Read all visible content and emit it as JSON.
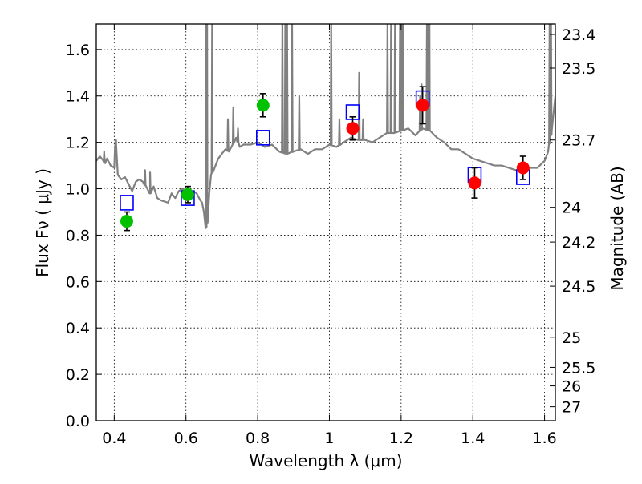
{
  "chart_data": {
    "type": "scatter",
    "xlabel": "Wavelength  λ (μm)",
    "ylabel": "Flux  Fν  ( μJy )",
    "ylabel_right": "Magnitude (AB)",
    "xlim": [
      0.35,
      1.63
    ],
    "ylim": [
      0.0,
      1.71
    ],
    "grid": true,
    "x_ticks": [
      0.4,
      0.6,
      0.8,
      1.0,
      1.2,
      1.4,
      1.6
    ],
    "x_tick_labels": [
      "0.4",
      "0.6",
      "0.8",
      "1",
      "1.2",
      "1.4",
      "1.6"
    ],
    "y_ticks": [
      0.0,
      0.2,
      0.4,
      0.6,
      0.8,
      1.0,
      1.2,
      1.4,
      1.6
    ],
    "y_tick_labels": [
      "0.0",
      "0.2",
      "0.4",
      "0.6",
      "0.8",
      "1.0",
      "1.2",
      "1.4",
      "1.6"
    ],
    "right_ticks": [
      {
        "flux": 1.665,
        "label": "23.4"
      },
      {
        "flux": 1.52,
        "label": "23.5"
      },
      {
        "flux": 1.21,
        "label": "23.7"
      },
      {
        "flux": 0.92,
        "label": "24"
      },
      {
        "flux": 0.77,
        "label": "24.2"
      },
      {
        "flux": 0.58,
        "label": "24.5"
      },
      {
        "flux": 0.36,
        "label": "25"
      },
      {
        "flux": 0.23,
        "label": "25.5"
      },
      {
        "flux": 0.15,
        "label": "26"
      },
      {
        "flux": 0.06,
        "label": "27"
      }
    ],
    "colors": {
      "template": "#808080",
      "model": "#0000ff",
      "optical": "#00c000",
      "infrared": "#ff0000",
      "errorbar": "#000000"
    },
    "series": [
      {
        "kind": "line",
        "x": [
          0.35,
          0.36,
          0.37,
          0.375,
          0.38,
          0.39,
          0.4,
          0.405,
          0.41,
          0.42,
          0.43,
          0.44,
          0.45,
          0.46,
          0.47,
          0.48,
          0.5,
          0.51,
          0.52,
          0.53,
          0.55,
          0.56,
          0.57,
          0.58,
          0.59,
          0.6,
          0.61,
          0.62,
          0.63,
          0.64,
          0.645,
          0.65,
          0.655,
          0.66,
          0.665,
          0.67,
          0.68,
          0.69,
          0.7,
          0.71,
          0.72,
          0.73,
          0.74,
          0.75,
          0.76,
          0.78,
          0.8,
          0.82,
          0.84,
          0.86,
          0.88,
          0.9,
          0.92,
          0.94,
          0.96,
          0.98,
          1.0,
          1.02,
          1.04,
          1.06,
          1.08,
          1.1,
          1.12,
          1.14,
          1.16,
          1.18,
          1.2,
          1.22,
          1.24,
          1.26,
          1.28,
          1.3,
          1.32,
          1.34,
          1.36,
          1.38,
          1.4,
          1.42,
          1.44,
          1.46,
          1.48,
          1.5,
          1.52,
          1.54,
          1.56,
          1.58,
          1.6,
          1.61,
          1.62,
          1.63
        ],
        "y": [
          1.12,
          1.14,
          1.12,
          1.11,
          1.13,
          1.1,
          1.09,
          1.21,
          1.06,
          1.04,
          1.05,
          1.02,
          0.99,
          1.03,
          1.04,
          1.03,
          0.98,
          1.01,
          0.96,
          0.95,
          0.94,
          0.98,
          0.96,
          0.99,
          1.0,
          0.98,
          0.96,
          0.99,
          0.98,
          0.95,
          0.94,
          0.9,
          0.83,
          0.86,
          0.98,
          1.06,
          1.09,
          1.13,
          1.15,
          1.17,
          1.16,
          1.19,
          1.22,
          1.18,
          1.19,
          1.19,
          1.2,
          1.18,
          1.19,
          1.16,
          1.15,
          1.16,
          1.17,
          1.15,
          1.17,
          1.17,
          1.19,
          1.18,
          1.2,
          1.22,
          1.21,
          1.21,
          1.2,
          1.22,
          1.24,
          1.24,
          1.25,
          1.26,
          1.23,
          1.26,
          1.25,
          1.22,
          1.2,
          1.17,
          1.17,
          1.15,
          1.13,
          1.12,
          1.11,
          1.1,
          1.1,
          1.09,
          1.08,
          1.08,
          1.09,
          1.09,
          1.12,
          1.16,
          1.25,
          1.4
        ]
      },
      {
        "kind": "spikes",
        "spikes": [
          {
            "x": 0.372,
            "y": 1.16
          },
          {
            "x": 0.404,
            "y": 1.21
          },
          {
            "x": 0.486,
            "y": 1.08
          },
          {
            "x": 0.5,
            "y": 1.07
          },
          {
            "x": 0.656,
            "y": 1.71
          },
          {
            "x": 0.659,
            "y": 1.71
          },
          {
            "x": 0.673,
            "y": 1.71
          },
          {
            "x": 0.717,
            "y": 1.3
          },
          {
            "x": 0.732,
            "y": 1.35
          },
          {
            "x": 0.745,
            "y": 1.26
          },
          {
            "x": 0.869,
            "y": 1.71
          },
          {
            "x": 0.877,
            "y": 1.71
          },
          {
            "x": 0.882,
            "y": 1.71
          },
          {
            "x": 0.896,
            "y": 1.71
          },
          {
            "x": 0.916,
            "y": 1.4
          },
          {
            "x": 1.005,
            "y": 1.71
          },
          {
            "x": 1.028,
            "y": 1.3
          },
          {
            "x": 1.083,
            "y": 1.5
          },
          {
            "x": 1.094,
            "y": 1.3
          },
          {
            "x": 1.162,
            "y": 1.71
          },
          {
            "x": 1.172,
            "y": 1.71
          },
          {
            "x": 1.183,
            "y": 1.71
          },
          {
            "x": 1.197,
            "y": 1.71
          },
          {
            "x": 1.2,
            "y": 1.71
          },
          {
            "x": 1.205,
            "y": 1.71
          },
          {
            "x": 1.253,
            "y": 1.4
          },
          {
            "x": 1.257,
            "y": 1.45
          },
          {
            "x": 1.272,
            "y": 1.71
          },
          {
            "x": 1.275,
            "y": 1.71
          },
          {
            "x": 1.279,
            "y": 1.71
          },
          {
            "x": 1.614,
            "y": 1.71
          },
          {
            "x": 1.618,
            "y": 1.71
          }
        ]
      },
      {
        "kind": "square",
        "x": [
          0.435,
          0.605,
          0.815,
          1.065,
          1.26,
          1.405,
          1.54
        ],
        "y": [
          0.94,
          0.96,
          1.22,
          1.33,
          1.39,
          1.06,
          1.05
        ]
      },
      {
        "kind": "point",
        "x": [
          0.435,
          0.605,
          0.815
        ],
        "y": [
          0.86,
          0.975,
          1.36
        ],
        "err": [
          0.04,
          0.035,
          0.05
        ]
      },
      {
        "kind": "point",
        "x": [
          1.065,
          1.26,
          1.405,
          1.54
        ],
        "y": [
          1.26,
          1.36,
          1.025,
          1.09
        ],
        "err": [
          0.05,
          0.08,
          0.065,
          0.05
        ]
      }
    ]
  }
}
